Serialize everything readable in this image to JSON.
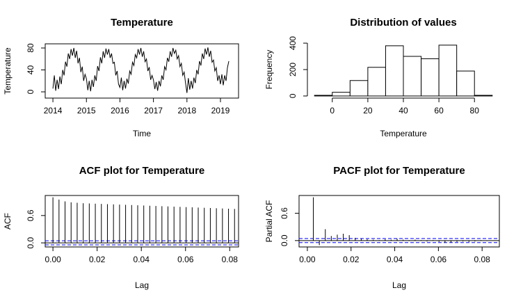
{
  "chart_data": [
    {
      "type": "line",
      "title": "Temperature",
      "x_label": "Time",
      "y_label": "Temperature",
      "x": [
        2014,
        2014.042,
        2014.083,
        2014.125,
        2014.167,
        2014.208,
        2014.25,
        2014.292,
        2014.333,
        2014.375,
        2014.417,
        2014.458,
        2014.5,
        2014.542,
        2014.583,
        2014.625,
        2014.667,
        2014.708,
        2014.75,
        2014.792,
        2014.833,
        2014.875,
        2014.917,
        2014.958,
        2015,
        2015.042,
        2015.083,
        2015.125,
        2015.167,
        2015.208,
        2015.25,
        2015.292,
        2015.333,
        2015.375,
        2015.417,
        2015.458,
        2015.5,
        2015.542,
        2015.583,
        2015.625,
        2015.667,
        2015.708,
        2015.75,
        2015.792,
        2015.833,
        2015.875,
        2015.917,
        2015.958,
        2016,
        2016.042,
        2016.083,
        2016.125,
        2016.167,
        2016.208,
        2016.25,
        2016.292,
        2016.333,
        2016.375,
        2016.417,
        2016.458,
        2016.5,
        2016.542,
        2016.583,
        2016.625,
        2016.667,
        2016.708,
        2016.75,
        2016.792,
        2016.833,
        2016.875,
        2016.917,
        2016.958,
        2017,
        2017.042,
        2017.083,
        2017.125,
        2017.167,
        2017.208,
        2017.25,
        2017.292,
        2017.333,
        2017.375,
        2017.417,
        2017.458,
        2017.5,
        2017.542,
        2017.583,
        2017.625,
        2017.667,
        2017.708,
        2017.75,
        2017.792,
        2017.833,
        2017.875,
        2017.917,
        2017.958,
        2018,
        2018.042,
        2018.083,
        2018.125,
        2018.167,
        2018.208,
        2018.25,
        2018.292,
        2018.333,
        2018.375,
        2018.417,
        2018.458,
        2018.5,
        2018.542,
        2018.583,
        2018.625,
        2018.667,
        2018.708,
        2018.75,
        2018.792,
        2018.833,
        2018.875,
        2018.917,
        2018.958,
        2019,
        2019.042,
        2019.083,
        2019.125,
        2019.167,
        2019.208,
        2019.25
      ],
      "values": [
        6,
        30,
        2,
        22,
        5,
        28,
        14,
        40,
        30,
        55,
        46,
        70,
        60,
        78,
        66,
        80,
        62,
        75,
        52,
        62,
        36,
        46,
        20,
        32,
        24,
        3,
        20,
        1,
        22,
        9,
        30,
        20,
        47,
        38,
        63,
        52,
        74,
        62,
        79,
        68,
        78,
        62,
        70,
        52,
        54,
        30,
        38,
        14,
        8,
        26,
        3,
        20,
        6,
        24,
        15,
        38,
        32,
        54,
        48,
        68,
        62,
        78,
        68,
        80,
        64,
        74,
        55,
        60,
        38,
        45,
        22,
        30,
        22,
        5,
        18,
        2,
        20,
        10,
        30,
        22,
        46,
        40,
        62,
        55,
        74,
        64,
        80,
        70,
        76,
        60,
        66,
        46,
        52,
        30,
        36,
        16,
        -2,
        25,
        4,
        20,
        6,
        26,
        16,
        40,
        32,
        56,
        48,
        70,
        60,
        79,
        68,
        81,
        64,
        75,
        54,
        58,
        38,
        44,
        20,
        30,
        14,
        32,
        12,
        30,
        20,
        44,
        56
      ],
      "color": "#000000",
      "xlim": [
        2013.77,
        2019.54
      ],
      "xticks": [
        2014,
        2015,
        2016,
        2017,
        2018,
        2019
      ],
      "ylim": [
        -11.4,
        87.6
      ],
      "yticks": [
        0,
        40,
        80
      ],
      "box": true
    },
    {
      "type": "histogram",
      "title": "Distribution of values",
      "x_label": "Temperature",
      "y_label": "Frequency",
      "bins": [
        -10,
        0,
        10,
        20,
        30,
        40,
        50,
        60,
        70,
        80,
        90
      ],
      "values": [
        5,
        28,
        117,
        217,
        380,
        300,
        282,
        385,
        189,
        5
      ],
      "color": "#000000",
      "xlim": [
        -14,
        94
      ],
      "xticks": [
        0,
        20,
        40,
        60,
        80
      ],
      "ylim": [
        -16,
        416
      ],
      "yticks": [
        0,
        200,
        400
      ],
      "box": false
    },
    {
      "type": "acf",
      "title": "ACF plot for Temperature",
      "x_label": "Lag",
      "y_label": "ACF",
      "x": [
        0,
        0.00274,
        0.00548,
        0.00822,
        0.01096,
        0.0137,
        0.01644,
        0.01918,
        0.02192,
        0.02466,
        0.0274,
        0.03014,
        0.03288,
        0.03562,
        0.03836,
        0.0411,
        0.04384,
        0.04658,
        0.04932,
        0.05205,
        0.05479,
        0.05753,
        0.06027,
        0.06301,
        0.06575,
        0.06849,
        0.07123,
        0.07397,
        0.07671,
        0.07945,
        0.08219
      ],
      "values": [
        1.0,
        0.95,
        0.91,
        0.89,
        0.88,
        0.87,
        0.865,
        0.86,
        0.855,
        0.85,
        0.845,
        0.84,
        0.835,
        0.83,
        0.825,
        0.82,
        0.815,
        0.81,
        0.805,
        0.8,
        0.795,
        0.79,
        0.785,
        0.78,
        0.775,
        0.77,
        0.765,
        0.76,
        0.755,
        0.75,
        0.745
      ],
      "color": "#000000",
      "ci_lines": [
        -0.045,
        0.045
      ],
      "ci_color": "#0000ff",
      "xlim": [
        -0.0035,
        0.084
      ],
      "xticks": [
        {
          "value": 0,
          "label": "0.00"
        },
        {
          "value": 0.02,
          "label": "0.02"
        },
        {
          "value": 0.04,
          "label": "0.04"
        },
        {
          "value": 0.06,
          "label": "0.06"
        },
        {
          "value": 0.08,
          "label": "0.08"
        }
      ],
      "ylim": [
        -0.09,
        1.04
      ],
      "yticks": [
        {
          "value": 0,
          "label": "0.0"
        },
        0.6
      ],
      "box": true
    },
    {
      "type": "acf",
      "title": "PACF plot for Temperature",
      "x_label": "Lag",
      "y_label": "Partial ACF",
      "x": [
        0.00274,
        0.00548,
        0.00822,
        0.01096,
        0.0137,
        0.01644,
        0.01918,
        0.02192,
        0.02466,
        0.0274,
        0.03014,
        0.03288,
        0.03562,
        0.03836,
        0.0411,
        0.04384,
        0.04658,
        0.04932,
        0.05205,
        0.05479,
        0.05753,
        0.06027,
        0.06301,
        0.06575,
        0.06849,
        0.07123,
        0.07397,
        0.07671,
        0.07945,
        0.08219
      ],
      "values": [
        0.95,
        -0.1,
        0.25,
        0.1,
        0.13,
        0.15,
        0.12,
        0.06,
        0.04,
        0.03,
        0.02,
        0.01,
        0.03,
        0.02,
        0.04,
        0.02,
        0.01,
        0.02,
        0.01,
        -0.02,
        0.01,
        -0.03,
        -0.05,
        -0.04,
        -0.03,
        -0.02,
        -0.03,
        -0.02,
        0.01,
        -0.01
      ],
      "color": "#000000",
      "ci_lines": [
        -0.045,
        0.045
      ],
      "ci_color": "#0000ff",
      "xlim": [
        -0.0038,
        0.0879
      ],
      "xticks": [
        {
          "value": 0,
          "label": "0.00"
        },
        {
          "value": 0.02,
          "label": "0.02"
        },
        {
          "value": 0.04,
          "label": "0.04"
        },
        {
          "value": 0.06,
          "label": "0.06"
        },
        {
          "value": 0.08,
          "label": "0.08"
        }
      ],
      "ylim": [
        -0.14,
        0.99
      ],
      "yticks": [
        {
          "value": 0,
          "label": "0.0"
        },
        0.6
      ],
      "box": true
    }
  ]
}
